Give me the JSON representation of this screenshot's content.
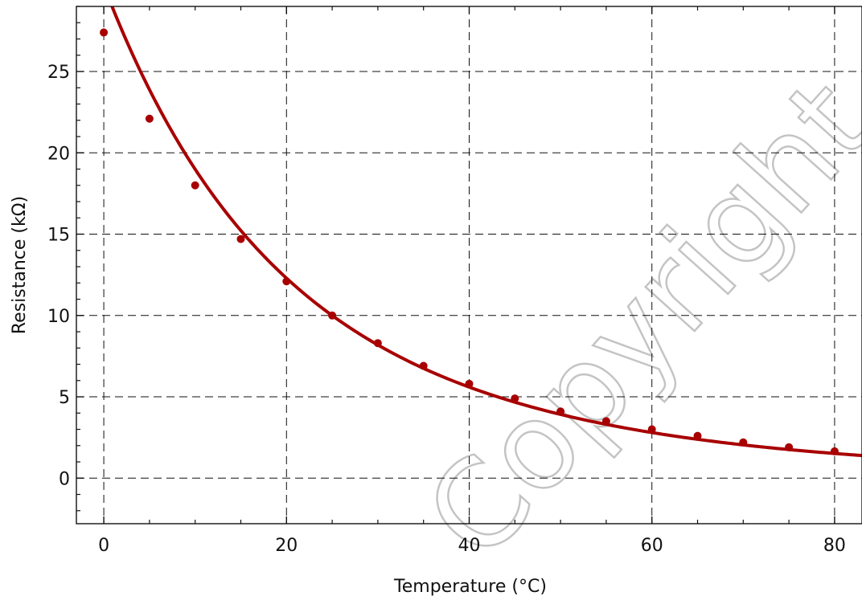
{
  "chart_data": {
    "type": "line",
    "title": "",
    "xlabel": "Temperature (°C)",
    "ylabel": "Resistance (kΩ)",
    "xlim": [
      -3,
      83
    ],
    "ylim": [
      -2.8,
      29
    ],
    "xticks": [
      0,
      20,
      40,
      60,
      80
    ],
    "xtick_labels": [
      "0",
      "20",
      "40",
      "60",
      "80"
    ],
    "yticks": [
      0,
      5,
      10,
      15,
      20,
      25
    ],
    "ytick_labels": [
      "0",
      "5",
      "10",
      "15",
      "20",
      "25"
    ],
    "grid": true,
    "grid_style": "dashed",
    "legend": "none",
    "color": "#a80000",
    "series": [
      {
        "x": [
          0,
          5,
          10,
          15,
          20,
          25,
          30,
          35,
          40,
          45,
          50,
          55,
          60,
          65,
          70,
          75,
          80
        ],
        "values": [
          27.4,
          22.1,
          18.0,
          14.7,
          12.1,
          10.0,
          8.3,
          6.9,
          5.8,
          4.9,
          4.1,
          3.5,
          3.0,
          2.6,
          2.2,
          1.9,
          1.65
        ],
        "markers": true
      }
    ],
    "fit_curve": {
      "model": "beta",
      "r25": 10.0,
      "t25": 25,
      "beta": 3610
    }
  },
  "watermark": {
    "text": "Copyright - QUBIG GmbH"
  }
}
